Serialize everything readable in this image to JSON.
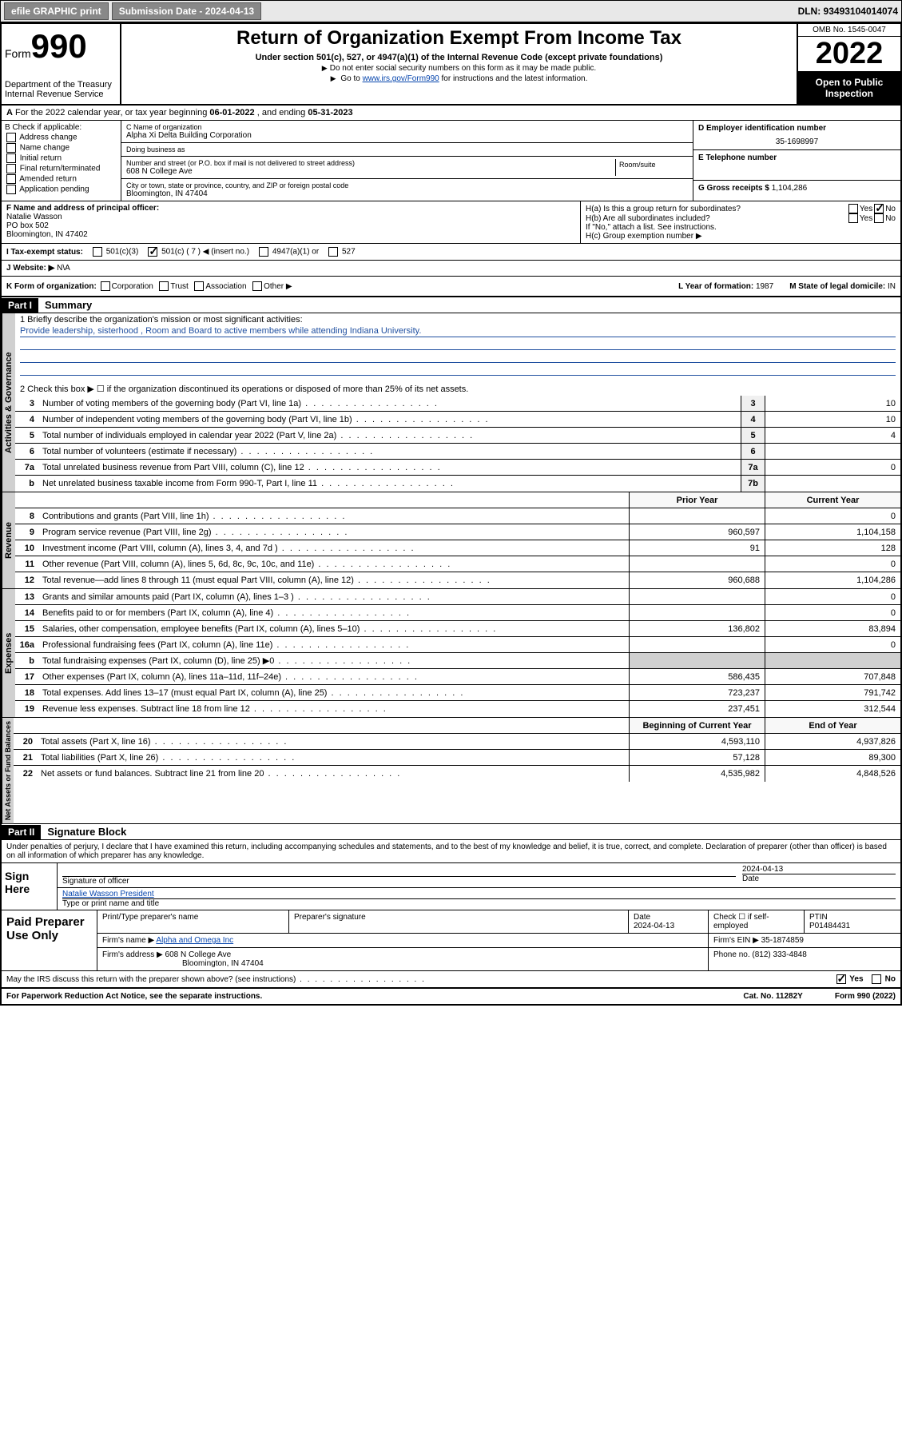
{
  "topbar": {
    "efile": "efile GRAPHIC print",
    "submission_label": "Submission Date - 2024-04-13",
    "dln": "DLN: 93493104014074"
  },
  "header": {
    "form_word": "Form",
    "form_num": "990",
    "dept": "Department of the Treasury",
    "irs": "Internal Revenue Service",
    "title": "Return of Organization Exempt From Income Tax",
    "subtitle": "Under section 501(c), 527, or 4947(a)(1) of the Internal Revenue Code (except private foundations)",
    "note1": "Do not enter social security numbers on this form as it may be made public.",
    "note2_pre": "Go to ",
    "note2_link": "www.irs.gov/Form990",
    "note2_post": " for instructions and the latest information.",
    "omb": "OMB No. 1545-0047",
    "year": "2022",
    "inspect": "Open to Public Inspection"
  },
  "row_a": {
    "label": "A",
    "text": "For the 2022 calendar year, or tax year beginning ",
    "begin": "06-01-2022",
    "mid": " , and ending ",
    "end": "05-31-2023"
  },
  "col_b": {
    "label": "B Check if applicable:",
    "items": [
      "Address change",
      "Name change",
      "Initial return",
      "Final return/terminated",
      "Amended return",
      "Application pending"
    ]
  },
  "col_c": {
    "name_label": "C Name of organization",
    "name": "Alpha Xi Delta Building Corporation",
    "dba_label": "Doing business as",
    "dba": "",
    "addr_label": "Number and street (or P.O. box if mail is not delivered to street address)",
    "room_label": "Room/suite",
    "addr": "608 N College Ave",
    "city_label": "City or town, state or province, country, and ZIP or foreign postal code",
    "city": "Bloomington, IN  47404"
  },
  "col_d": {
    "ein_label": "D Employer identification number",
    "ein": "35-1698997",
    "phone_label": "E Telephone number",
    "phone": "",
    "gross_label": "G Gross receipts $",
    "gross": "1,104,286"
  },
  "section_f": {
    "label": "F  Name and address of principal officer:",
    "name": "Natalie Wasson",
    "addr1": "PO box 502",
    "addr2": "Bloomington, IN  47402"
  },
  "section_h": {
    "ha": "H(a)  Is this a group return for subordinates?",
    "hb": "H(b)  Are all subordinates included?",
    "hb_note": "If \"No,\" attach a list. See instructions.",
    "hc": "H(c)  Group exemption number ▶",
    "yes": "Yes",
    "no": "No"
  },
  "section_i": {
    "label": "I   Tax-exempt status:",
    "opt1": "501(c)(3)",
    "opt2": "501(c) ( 7 ) ◀ (insert no.)",
    "opt3": "4947(a)(1) or",
    "opt4": "527"
  },
  "section_j": {
    "label": "J   Website: ▶",
    "val": "N\\A"
  },
  "section_k": {
    "label": "K Form of organization:",
    "opts": [
      "Corporation",
      "Trust",
      "Association",
      "Other ▶"
    ],
    "l_label": "L Year of formation:",
    "l_val": "1987",
    "m_label": "M State of legal domicile:",
    "m_val": "IN"
  },
  "part1": {
    "hdr": "Part I",
    "title": "Summary",
    "line1_label": "1   Briefly describe the organization's mission or most significant activities:",
    "line1_text": "Provide leadership, sisterhood , Room and Board to active members while attending Indiana University.",
    "line2": "2   Check this box ▶ ☐  if the organization discontinued its operations or disposed of more than 25% of its net assets.",
    "vtab_gov": "Activities & Governance",
    "vtab_rev": "Revenue",
    "vtab_exp": "Expenses",
    "vtab_net": "Net Assets or Fund Balances",
    "prior_hdr": "Prior Year",
    "curr_hdr": "Current Year",
    "begin_hdr": "Beginning of Current Year",
    "end_hdr": "End of Year",
    "lines_gov": [
      {
        "n": "3",
        "d": "Number of voting members of the governing body (Part VI, line 1a)",
        "box": "3",
        "v": "10"
      },
      {
        "n": "4",
        "d": "Number of independent voting members of the governing body (Part VI, line 1b)",
        "box": "4",
        "v": "10"
      },
      {
        "n": "5",
        "d": "Total number of individuals employed in calendar year 2022 (Part V, line 2a)",
        "box": "5",
        "v": "4"
      },
      {
        "n": "6",
        "d": "Total number of volunteers (estimate if necessary)",
        "box": "6",
        "v": ""
      },
      {
        "n": "7a",
        "d": "Total unrelated business revenue from Part VIII, column (C), line 12",
        "box": "7a",
        "v": "0"
      },
      {
        "n": "b",
        "d": "Net unrelated business taxable income from Form 990-T, Part I, line 11",
        "box": "7b",
        "v": ""
      }
    ],
    "lines_rev": [
      {
        "n": "8",
        "d": "Contributions and grants (Part VIII, line 1h)",
        "p": "",
        "c": "0"
      },
      {
        "n": "9",
        "d": "Program service revenue (Part VIII, line 2g)",
        "p": "960,597",
        "c": "1,104,158"
      },
      {
        "n": "10",
        "d": "Investment income (Part VIII, column (A), lines 3, 4, and 7d )",
        "p": "91",
        "c": "128"
      },
      {
        "n": "11",
        "d": "Other revenue (Part VIII, column (A), lines 5, 6d, 8c, 9c, 10c, and 11e)",
        "p": "",
        "c": "0"
      },
      {
        "n": "12",
        "d": "Total revenue—add lines 8 through 11 (must equal Part VIII, column (A), line 12)",
        "p": "960,688",
        "c": "1,104,286"
      }
    ],
    "lines_exp": [
      {
        "n": "13",
        "d": "Grants and similar amounts paid (Part IX, column (A), lines 1–3 )",
        "p": "",
        "c": "0"
      },
      {
        "n": "14",
        "d": "Benefits paid to or for members (Part IX, column (A), line 4)",
        "p": "",
        "c": "0"
      },
      {
        "n": "15",
        "d": "Salaries, other compensation, employee benefits (Part IX, column (A), lines 5–10)",
        "p": "136,802",
        "c": "83,894"
      },
      {
        "n": "16a",
        "d": "Professional fundraising fees (Part IX, column (A), line 11e)",
        "p": "",
        "c": "0"
      },
      {
        "n": "b",
        "d": "Total fundraising expenses (Part IX, column (D), line 25) ▶0",
        "p": "GRAY",
        "c": "GRAY"
      },
      {
        "n": "17",
        "d": "Other expenses (Part IX, column (A), lines 11a–11d, 11f–24e)",
        "p": "586,435",
        "c": "707,848"
      },
      {
        "n": "18",
        "d": "Total expenses. Add lines 13–17 (must equal Part IX, column (A), line 25)",
        "p": "723,237",
        "c": "791,742"
      },
      {
        "n": "19",
        "d": "Revenue less expenses. Subtract line 18 from line 12",
        "p": "237,451",
        "c": "312,544"
      }
    ],
    "lines_net": [
      {
        "n": "20",
        "d": "Total assets (Part X, line 16)",
        "p": "4,593,110",
        "c": "4,937,826"
      },
      {
        "n": "21",
        "d": "Total liabilities (Part X, line 26)",
        "p": "57,128",
        "c": "89,300"
      },
      {
        "n": "22",
        "d": "Net assets or fund balances. Subtract line 21 from line 20",
        "p": "4,535,982",
        "c": "4,848,526"
      }
    ]
  },
  "part2": {
    "hdr": "Part II",
    "title": "Signature Block",
    "decl": "Under penalties of perjury, I declare that I have examined this return, including accompanying schedules and statements, and to the best of my knowledge and belief, it is true, correct, and complete. Declaration of preparer (other than officer) is based on all information of which preparer has any knowledge.",
    "sign_here": "Sign Here",
    "sig_officer": "Signature of officer",
    "sig_date": "2024-04-13",
    "date_label": "Date",
    "officer_name": "Natalie Wasson President",
    "officer_type": "Type or print name and title",
    "paid": "Paid Preparer Use Only",
    "prep_name_label": "Print/Type preparer's name",
    "prep_sig_label": "Preparer's signature",
    "prep_date_label": "Date",
    "prep_date": "2024-04-13",
    "check_self": "Check ☐ if self-employed",
    "ptin_label": "PTIN",
    "ptin": "P01484431",
    "firm_name_label": "Firm's name    ▶",
    "firm_name": "Alpha and Omega Inc",
    "firm_ein_label": "Firm's EIN ▶",
    "firm_ein": "35-1874859",
    "firm_addr_label": "Firm's address ▶",
    "firm_addr1": "608 N College Ave",
    "firm_addr2": "Bloomington, IN  47404",
    "firm_phone_label": "Phone no.",
    "firm_phone": "(812) 333-4848",
    "may_irs": "May the IRS discuss this return with the preparer shown above? (see instructions)",
    "yes": "Yes",
    "no": "No"
  },
  "footer": {
    "left": "For Paperwork Reduction Act Notice, see the separate instructions.",
    "mid": "Cat. No. 11282Y",
    "right": "Form 990 (2022)"
  },
  "colors": {
    "link": "#0645ad",
    "uline": "#2050a0"
  }
}
